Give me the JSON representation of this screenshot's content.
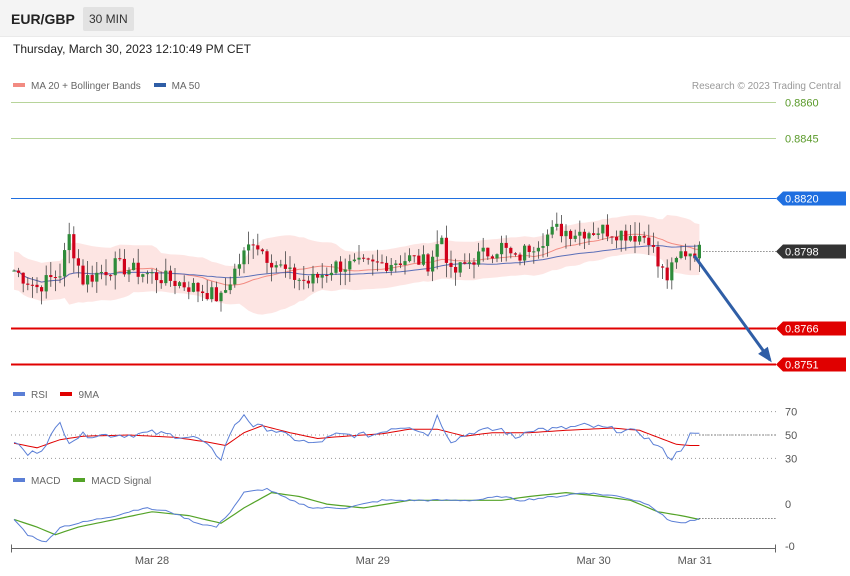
{
  "header": {
    "pair": "EUR/GBP",
    "timeframe": "30 MIN"
  },
  "datetime": "Thursday, March 30, 2023 12:10:49 PM CET",
  "credit": "Research © 2023 Trading Central",
  "colors": {
    "bollinger": "#f28b82",
    "ma50": "#2f5ea6",
    "green": "#5a9a2a",
    "blue": "#1f6fe0",
    "red": "#e00000",
    "dark": "#333333",
    "rsi": "#5b7fd6",
    "rsi_ma": "#e00000",
    "macd": "#5b7fd6",
    "macd_signal": "#54a328"
  },
  "legends": {
    "price": [
      {
        "label": "MA 20 + Bollinger Bands",
        "color": "#f28b82"
      },
      {
        "label": "MA 50",
        "color": "#2f5ea6"
      }
    ],
    "rsi": [
      {
        "label": "RSI",
        "color": "#5b7fd6"
      },
      {
        "label": "9MA",
        "color": "#e00000"
      }
    ],
    "macd": [
      {
        "label": "MACD",
        "color": "#5b7fd6"
      },
      {
        "label": "MACD Signal",
        "color": "#54a328"
      }
    ]
  },
  "chart_data": {
    "type": "candlestick",
    "price_range": [
      0.8746,
      0.8866
    ],
    "levels": [
      {
        "value": 0.886,
        "label": "0.8860",
        "style": "green-line"
      },
      {
        "value": 0.8845,
        "label": "0.8845",
        "style": "green-line"
      },
      {
        "value": 0.882,
        "label": "0.8820",
        "style": "blue-line-tag"
      },
      {
        "value": 0.8798,
        "label": "0.8798",
        "style": "current-price-tag"
      },
      {
        "value": 0.8766,
        "label": "0.8766",
        "style": "red-line-tag"
      },
      {
        "value": 0.8751,
        "label": "0.8751",
        "style": "red-line-tag"
      }
    ],
    "x_ticks": [
      {
        "label": "Mar 28",
        "index": 30
      },
      {
        "label": "Mar 29",
        "index": 78
      },
      {
        "label": "Mar 30",
        "index": 126
      },
      {
        "label": "Mar 31",
        "index": 148
      }
    ],
    "candle_count": 150,
    "price_waypoints": [
      [
        0,
        0.879
      ],
      [
        5,
        0.8783
      ],
      [
        10,
        0.8789
      ],
      [
        12,
        0.8804
      ],
      [
        15,
        0.8786
      ],
      [
        22,
        0.8792
      ],
      [
        28,
        0.8789
      ],
      [
        34,
        0.8786
      ],
      [
        42,
        0.8781
      ],
      [
        45,
        0.8778
      ],
      [
        48,
        0.879
      ],
      [
        52,
        0.8803
      ],
      [
        55,
        0.8796
      ],
      [
        60,
        0.8788
      ],
      [
        64,
        0.8785
      ],
      [
        70,
        0.8792
      ],
      [
        78,
        0.8792
      ],
      [
        86,
        0.8795
      ],
      [
        90,
        0.8793
      ],
      [
        93,
        0.8804
      ],
      [
        95,
        0.8788
      ],
      [
        100,
        0.8795
      ],
      [
        106,
        0.88
      ],
      [
        109,
        0.8794
      ],
      [
        112,
        0.88
      ],
      [
        118,
        0.8807
      ],
      [
        122,
        0.8806
      ],
      [
        128,
        0.8807
      ],
      [
        134,
        0.8805
      ],
      [
        138,
        0.8804
      ],
      [
        140,
        0.8792
      ],
      [
        142,
        0.8787
      ],
      [
        145,
        0.8797
      ],
      [
        147,
        0.8798
      ]
    ],
    "projection": {
      "from_index": 147,
      "from_value": 0.8797,
      "to_index": 160,
      "to_value": 0.8751
    },
    "rsi": {
      "range": [
        20,
        80
      ],
      "ticks": [
        70,
        50,
        30
      ],
      "waypoints": [
        [
          0,
          45
        ],
        [
          3,
          33
        ],
        [
          6,
          38
        ],
        [
          10,
          60
        ],
        [
          12,
          45
        ],
        [
          15,
          50
        ],
        [
          25,
          50
        ],
        [
          30,
          52
        ],
        [
          40,
          47
        ],
        [
          45,
          30
        ],
        [
          47,
          52
        ],
        [
          50,
          68
        ],
        [
          52,
          58
        ],
        [
          56,
          55
        ],
        [
          60,
          48
        ],
        [
          65,
          42
        ],
        [
          70,
          50
        ],
        [
          78,
          50
        ],
        [
          82,
          56
        ],
        [
          86,
          58
        ],
        [
          90,
          50
        ],
        [
          92,
          66
        ],
        [
          95,
          45
        ],
        [
          100,
          53
        ],
        [
          106,
          55
        ],
        [
          109,
          47
        ],
        [
          112,
          55
        ],
        [
          118,
          55
        ],
        [
          124,
          58
        ],
        [
          130,
          55
        ],
        [
          136,
          52
        ],
        [
          140,
          40
        ],
        [
          143,
          30
        ],
        [
          145,
          38
        ],
        [
          147,
          50
        ],
        [
          149,
          50
        ]
      ],
      "ma_waypoints": [
        [
          0,
          43
        ],
        [
          5,
          39
        ],
        [
          10,
          46
        ],
        [
          15,
          49
        ],
        [
          25,
          50
        ],
        [
          35,
          48
        ],
        [
          42,
          44
        ],
        [
          46,
          41
        ],
        [
          50,
          52
        ],
        [
          54,
          58
        ],
        [
          60,
          52
        ],
        [
          66,
          47
        ],
        [
          72,
          49
        ],
        [
          80,
          51
        ],
        [
          86,
          55
        ],
        [
          92,
          55
        ],
        [
          98,
          49
        ],
        [
          104,
          52
        ],
        [
          112,
          52
        ],
        [
          120,
          54
        ],
        [
          130,
          56
        ],
        [
          136,
          54
        ],
        [
          140,
          48
        ],
        [
          144,
          42
        ],
        [
          147,
          41
        ]
      ]
    },
    "macd": {
      "range": [
        -0.0012,
        0.0005
      ],
      "ticks": [
        {
          "label": "0",
          "value": 0
        },
        {
          "label": "-0",
          "value": -0.0011
        }
      ],
      "waypoints": [
        [
          0,
          -0.0004
        ],
        [
          3,
          -0.0008
        ],
        [
          7,
          -0.001
        ],
        [
          10,
          -0.0006
        ],
        [
          14,
          -0.0005
        ],
        [
          22,
          -0.0003
        ],
        [
          28,
          -0.0001
        ],
        [
          34,
          -0.0002
        ],
        [
          40,
          -0.0005
        ],
        [
          44,
          -0.0006
        ],
        [
          47,
          -0.0002
        ],
        [
          50,
          0.0003
        ],
        [
          55,
          0.0004
        ],
        [
          60,
          0.0001
        ],
        [
          65,
          -0.0001
        ],
        [
          72,
          -0.0001
        ],
        [
          80,
          0.0001
        ],
        [
          88,
          0.0001
        ],
        [
          94,
          0.0001
        ],
        [
          100,
          0.0001
        ],
        [
          106,
          0.0002
        ],
        [
          110,
          0.0001
        ],
        [
          118,
          0.0002
        ],
        [
          124,
          0.0003
        ],
        [
          132,
          0.0002
        ],
        [
          138,
          0.0
        ],
        [
          142,
          -0.0004
        ],
        [
          145,
          -0.0005
        ],
        [
          149,
          -0.0004
        ]
      ],
      "signal_waypoints": [
        [
          0,
          -0.0004
        ],
        [
          5,
          -0.0006
        ],
        [
          9,
          -0.0008
        ],
        [
          14,
          -0.0006
        ],
        [
          22,
          -0.0004
        ],
        [
          30,
          -0.0002
        ],
        [
          38,
          -0.0003
        ],
        [
          45,
          -0.0005
        ],
        [
          50,
          -0.0001
        ],
        [
          56,
          0.0003
        ],
        [
          62,
          0.0002
        ],
        [
          68,
          0.0
        ],
        [
          76,
          -0.0001
        ],
        [
          86,
          0.0001
        ],
        [
          96,
          0.0001
        ],
        [
          106,
          0.0001
        ],
        [
          112,
          0.0002
        ],
        [
          120,
          0.0003
        ],
        [
          128,
          0.0002
        ],
        [
          134,
          0.0001
        ],
        [
          140,
          -0.0002
        ],
        [
          145,
          -0.0003
        ],
        [
          149,
          -0.0004
        ]
      ]
    }
  }
}
